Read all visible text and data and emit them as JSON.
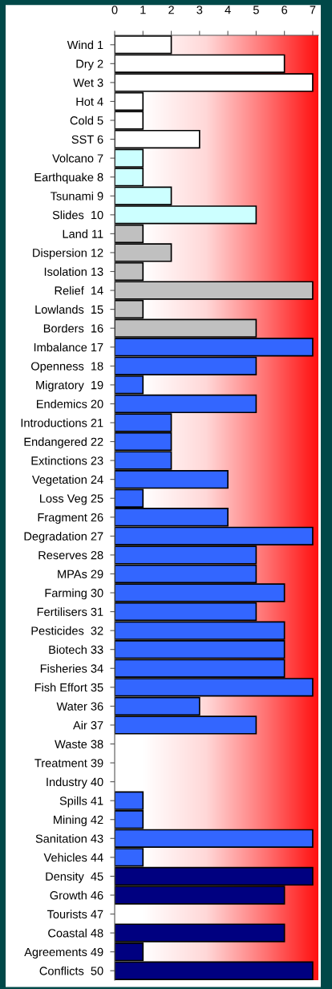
{
  "chart_data": {
    "type": "bar",
    "orientation": "horizontal",
    "categories": [
      "Wind 1",
      "Dry 2",
      "Wet 3",
      "Hot 4",
      "Cold 5",
      "SST 6",
      "Volcano 7",
      "Earthquake 8",
      "Tsunami 9",
      "Slides  10",
      "Land 11",
      "Dispersion 12",
      "Isolation 13",
      "Relief  14",
      "Lowlands  15",
      "Borders  16",
      "Imbalance 17",
      "Openness  18",
      "Migratory  19",
      "Endemics 20",
      "Introductions 21",
      "Endangered 22",
      "Extinctions 23",
      "Vegetation 24",
      "Loss Veg 25",
      "Fragment 26",
      "Degradation 27",
      "Reserves 28",
      "MPAs 29",
      "Farming 30",
      "Fertilisers 31",
      "Pesticides  32",
      "Biotech 33",
      "Fisheries 34",
      "Fish Effort 35",
      "Water 36",
      "Air 37",
      "Waste 38",
      "Treatment 39",
      "Industry 40",
      "Spills 41",
      "Mining 42",
      "Sanitation 43",
      "Vehicles 44",
      "Density  45",
      "Growth 46",
      "Tourists 47",
      "Coastal 48",
      "Agreements 49",
      "Conflicts  50"
    ],
    "values": [
      2,
      6,
      7,
      1,
      1,
      3,
      1,
      1,
      2,
      5,
      1,
      2,
      1,
      7,
      1,
      5,
      7,
      5,
      1,
      5,
      2,
      2,
      2,
      4,
      1,
      4,
      7,
      5,
      5,
      6,
      5,
      6,
      6,
      6,
      7,
      3,
      5,
      null,
      null,
      null,
      1,
      1,
      7,
      1,
      7,
      6,
      null,
      6,
      1,
      7
    ],
    "colors": [
      "#ffffff",
      "#ffffff",
      "#ffffff",
      "#ffffff",
      "#ffffff",
      "#ffffff",
      "#ccffff",
      "#ccffff",
      "#ccffff",
      "#ccffff",
      "#c0c0c0",
      "#c0c0c0",
      "#c0c0c0",
      "#c0c0c0",
      "#c0c0c0",
      "#c0c0c0",
      "#3366ff",
      "#3366ff",
      "#3366ff",
      "#3366ff",
      "#3366ff",
      "#3366ff",
      "#3366ff",
      "#3366ff",
      "#3366ff",
      "#3366ff",
      "#3366ff",
      "#3366ff",
      "#3366ff",
      "#3366ff",
      "#3366ff",
      "#3366ff",
      "#3366ff",
      "#3366ff",
      "#3366ff",
      "#3366ff",
      "#3366ff",
      "#3366ff",
      "#3366ff",
      "#3366ff",
      "#3366ff",
      "#3366ff",
      "#3366ff",
      "#3366ff",
      "#000080",
      "#000080",
      "#000080",
      "#000080",
      "#000080",
      "#000080"
    ],
    "xlim": [
      0,
      7.2
    ],
    "xticks": [
      0,
      1,
      2,
      3,
      4,
      5,
      6,
      7
    ]
  }
}
